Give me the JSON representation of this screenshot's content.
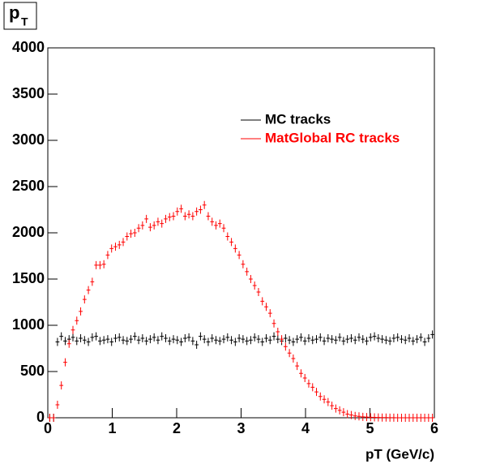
{
  "chart_data": {
    "type": "histogram",
    "title": "p",
    "title_sub": "T",
    "x_label": "pT (GeV/c)",
    "bins": [
      0,
      0.06,
      0.12,
      0.18,
      0.24,
      0.3,
      0.36,
      0.42,
      0.48,
      0.54,
      0.6,
      0.66,
      0.72,
      0.78,
      0.84,
      0.9,
      0.96,
      1.02,
      1.08,
      1.14,
      1.2,
      1.26,
      1.32,
      1.38,
      1.44,
      1.5,
      1.56,
      1.62,
      1.68,
      1.74,
      1.8,
      1.86,
      1.92,
      1.98,
      2.04,
      2.1,
      2.16,
      2.22,
      2.28,
      2.34,
      2.4,
      2.46,
      2.52,
      2.58,
      2.64,
      2.7,
      2.76,
      2.82,
      2.88,
      2.94,
      3,
      3.06,
      3.12,
      3.18,
      3.24,
      3.3,
      3.36,
      3.42,
      3.48,
      3.54,
      3.6,
      3.66,
      3.72,
      3.78,
      3.84,
      3.9,
      3.96,
      4.02,
      4.08,
      4.14,
      4.2,
      4.26,
      4.32,
      4.38,
      4.44,
      4.5,
      4.56,
      4.62,
      4.68,
      4.74,
      4.8,
      4.86,
      4.92,
      4.98,
      5.04,
      5.1,
      5.16,
      5.22,
      5.28,
      5.34,
      5.4,
      5.46,
      5.52,
      5.58,
      5.64,
      5.7,
      5.76,
      5.82,
      5.88,
      5.94,
      6
    ],
    "series": [
      {
        "name": "MC tracks",
        "color": "#000000",
        "values": [
          0,
          0,
          820,
          880,
          830,
          850,
          870,
          830,
          860,
          840,
          820,
          870,
          880,
          830,
          840,
          850,
          820,
          860,
          870,
          840,
          830,
          850,
          880,
          840,
          860,
          830,
          850,
          870,
          840,
          880,
          860,
          830,
          850,
          840,
          820,
          860,
          870,
          830,
          790,
          880,
          850,
          820,
          860,
          840,
          830,
          850,
          870,
          840,
          820,
          860,
          850,
          830,
          840,
          870,
          850,
          820,
          860,
          840,
          880,
          850,
          830,
          860,
          840,
          820,
          850,
          870,
          830,
          860,
          840,
          850,
          870,
          830,
          860,
          850,
          840,
          870,
          830,
          850,
          860,
          840,
          870,
          850,
          830,
          870,
          880,
          860,
          850,
          840,
          830,
          860,
          870,
          850,
          840,
          860,
          830,
          850,
          870,
          820,
          860,
          900
        ]
      },
      {
        "name": "MatGlobal RC tracks",
        "color": "#ff0000",
        "values": [
          0,
          0,
          140,
          350,
          600,
          800,
          950,
          1050,
          1150,
          1280,
          1380,
          1470,
          1650,
          1650,
          1660,
          1760,
          1830,
          1850,
          1870,
          1900,
          1960,
          1990,
          2000,
          2050,
          2080,
          2150,
          2060,
          2080,
          2120,
          2100,
          2150,
          2170,
          2180,
          2230,
          2260,
          2180,
          2200,
          2180,
          2230,
          2250,
          2300,
          2180,
          2120,
          2080,
          2100,
          2050,
          1960,
          1900,
          1830,
          1760,
          1660,
          1580,
          1500,
          1430,
          1360,
          1260,
          1200,
          1130,
          1020,
          930,
          850,
          770,
          700,
          640,
          560,
          480,
          430,
          370,
          330,
          280,
          230,
          200,
          170,
          130,
          100,
          80,
          60,
          40,
          30,
          20,
          15,
          10,
          8,
          5,
          4,
          3,
          2,
          2,
          1,
          1,
          0,
          0,
          0,
          0,
          0,
          0,
          0,
          0,
          0,
          0
        ]
      }
    ],
    "xlim": [
      0,
      6
    ],
    "xticks": [
      0,
      1,
      2,
      3,
      4,
      5,
      6
    ],
    "ylim": [
      0,
      4000
    ],
    "yticks": [
      0,
      500,
      1000,
      1500,
      2000,
      2500,
      3000,
      3500,
      4000
    ],
    "legend": "top-right"
  }
}
